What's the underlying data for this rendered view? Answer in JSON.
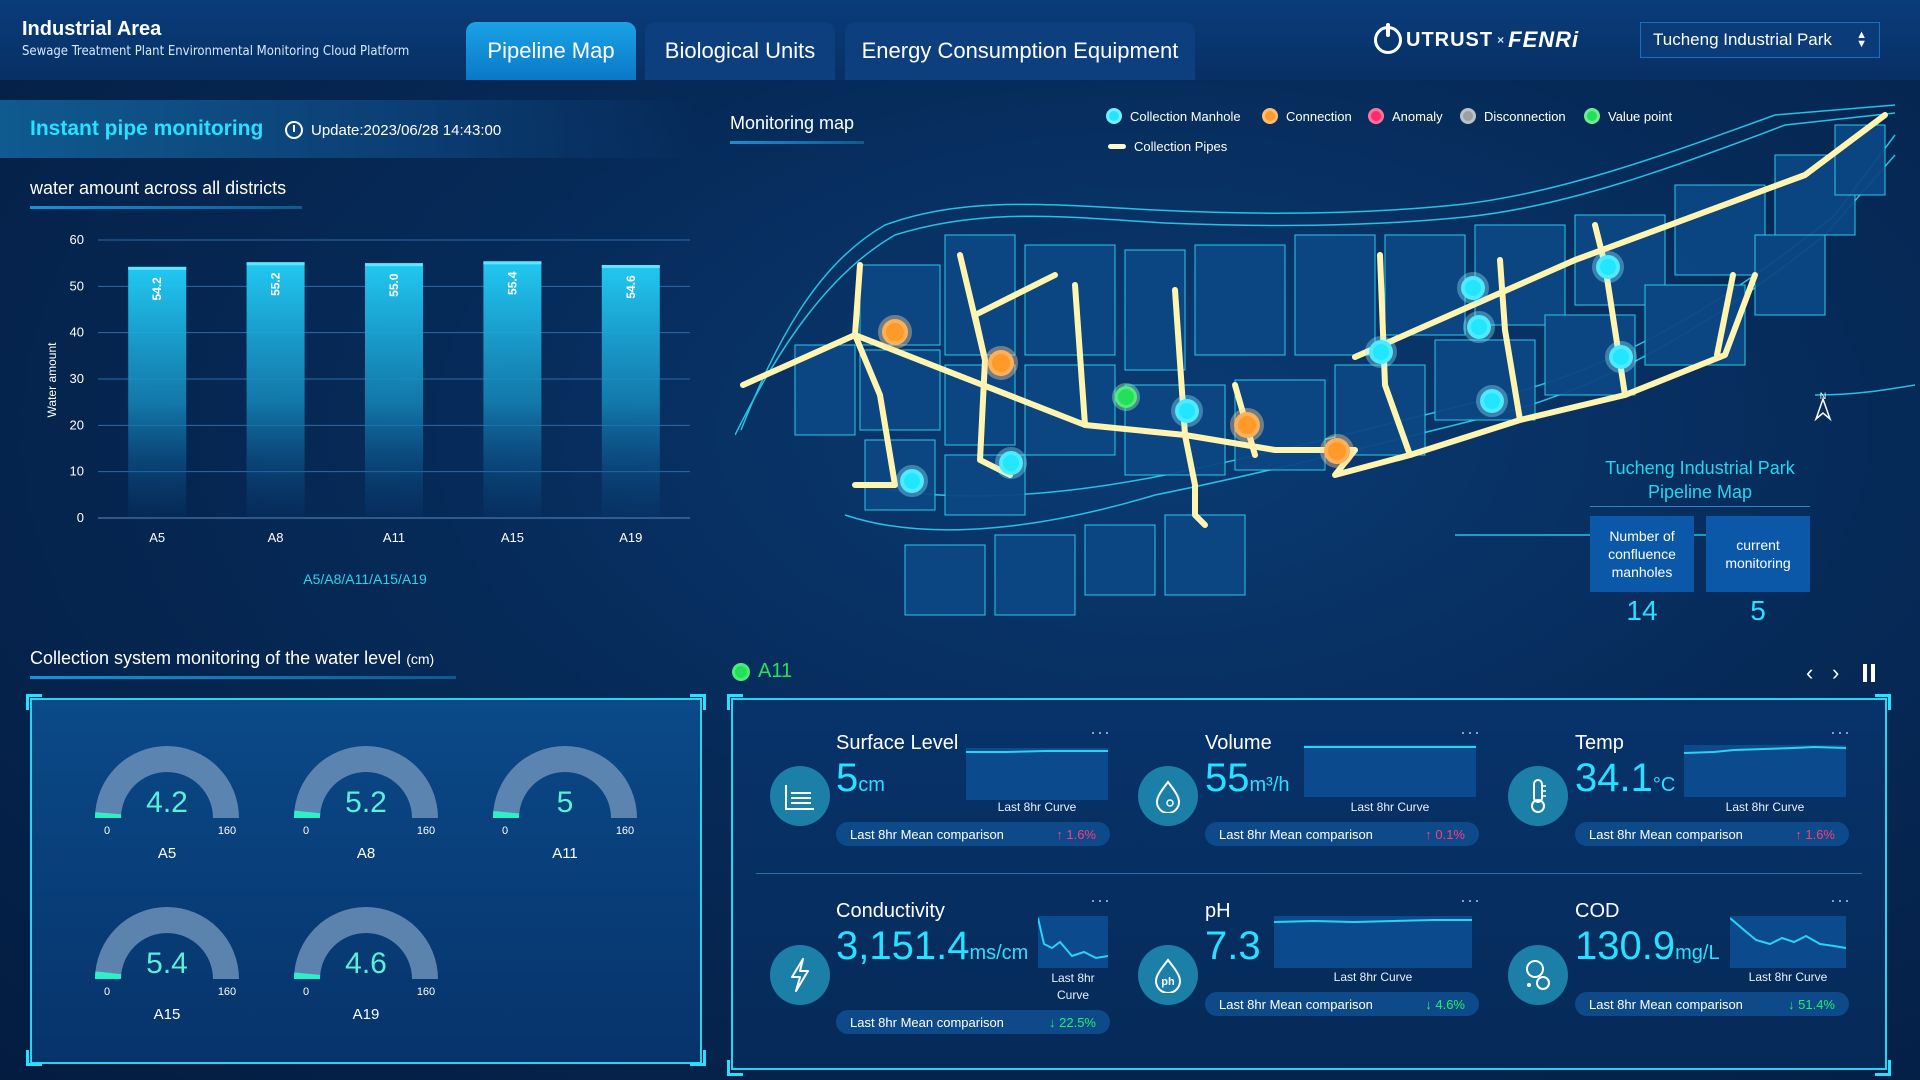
{
  "header": {
    "title": "Industrial Area",
    "subtitle": "Sewage Treatment Plant Environmental Monitoring Cloud Platform",
    "tabs": [
      {
        "label": "Pipeline Map",
        "active": true
      },
      {
        "label": "Biological Units",
        "active": false
      },
      {
        "label": "Energy Consumption Equipment",
        "active": false
      }
    ],
    "logo": {
      "left": "UTRUST",
      "sep": "×",
      "right": "FENRi"
    },
    "park_select": {
      "value": "Tucheng Industrial Park",
      "icon": "updown-chevron-icon"
    }
  },
  "left": {
    "heading": "Instant pipe monitoring",
    "update_text": "Update:2023/06/28 14:43:00",
    "clock_icon": "clock-icon",
    "water_title": "water amount across all districts",
    "level_title": "Collection system monitoring of the water level",
    "level_unit": "(cm)"
  },
  "chart_data": {
    "type": "bar",
    "categories": [
      "A5",
      "A8",
      "A11",
      "A15",
      "A19"
    ],
    "values": [
      54.2,
      55.2,
      55.0,
      55.4,
      54.6
    ],
    "value_labels": [
      "54.2",
      "55.2",
      "55.0",
      "55.4",
      "54.6"
    ],
    "ylabel": "Water amount",
    "xlabel": "A5/A8/A11/A15/A19",
    "ylim": [
      0,
      60
    ],
    "yticks": [
      "0",
      "10",
      "20",
      "30",
      "40",
      "50",
      "60"
    ],
    "grid": true,
    "bar_color": "#1ab8e8"
  },
  "gauges": [
    {
      "name": "A5",
      "value": "4.2",
      "min": "0",
      "max": "160"
    },
    {
      "name": "A8",
      "value": "5.2",
      "min": "0",
      "max": "160"
    },
    {
      "name": "A11",
      "value": "5",
      "min": "0",
      "max": "160"
    },
    {
      "name": "A15",
      "value": "5.4",
      "min": "0",
      "max": "160"
    },
    {
      "name": "A19",
      "value": "4.6",
      "min": "0",
      "max": "160"
    }
  ],
  "map": {
    "title": "Monitoring map",
    "legend": [
      {
        "label": "Collection Manhole",
        "color": "#22e6ff"
      },
      {
        "label": "Connection",
        "color": "#ff9a2a"
      },
      {
        "label": "Anomaly",
        "color": "#ff2a6a"
      },
      {
        "label": "Disconnection",
        "color": "#9aa0a8"
      },
      {
        "label": "Value point",
        "color": "#22e05a"
      },
      {
        "label": "Collection Pipes",
        "color": "#fff8c8"
      }
    ],
    "north": "N",
    "caption_line1": "Tucheng Industrial Park",
    "caption_line2": "Pipeline Map",
    "stats": [
      {
        "label": "Number of confluence manholes",
        "value": "14"
      },
      {
        "label": "current monitoring",
        "value": "5"
      }
    ]
  },
  "site": {
    "name": "A11",
    "status_color": "#22e05a",
    "nav_prev_icon": "chevron-left-icon",
    "nav_next_icon": "chevron-right-icon",
    "pause_icon": "pause-icon"
  },
  "metrics": [
    {
      "name": "Surface Level",
      "value": "5",
      "unit": "cm",
      "icon": "water-level-icon",
      "curve": "Last 8hr Curve",
      "cmp_label": "Last 8hr Mean comparison",
      "cmp_value": "1.6%",
      "dir": "up"
    },
    {
      "name": "Volume",
      "value": "55",
      "unit": "m³/h",
      "icon": "water-drop-icon",
      "curve": "Last 8hr Curve",
      "cmp_label": "Last 8hr Mean comparison",
      "cmp_value": "0.1%",
      "dir": "up"
    },
    {
      "name": "Temp",
      "value": "34.1",
      "unit": "°C",
      "icon": "thermometer-icon",
      "curve": "Last 8hr Curve",
      "cmp_label": "Last 8hr Mean comparison",
      "cmp_value": "1.6%",
      "dir": "up"
    },
    {
      "name": "Conductivity",
      "value": "3,151.4",
      "unit": "ms/cm",
      "icon": "lightning-icon",
      "curve": "Last 8hr Curve",
      "cmp_label": "Last 8hr Mean comparison",
      "cmp_value": "22.5%",
      "dir": "down"
    },
    {
      "name": "pH",
      "value": "7.3",
      "unit": "",
      "icon": "ph-icon",
      "curve": "Last 8hr Curve",
      "cmp_label": "Last 8hr Mean comparison",
      "cmp_value": "4.6%",
      "dir": "down"
    },
    {
      "name": "COD",
      "value": "130.9",
      "unit": "mg/L",
      "icon": "bubbles-icon",
      "curve": "Last 8hr Curve",
      "cmp_label": "Last 8hr Mean comparison",
      "cmp_value": "51.4%",
      "dir": "down"
    }
  ],
  "more_label": "···"
}
